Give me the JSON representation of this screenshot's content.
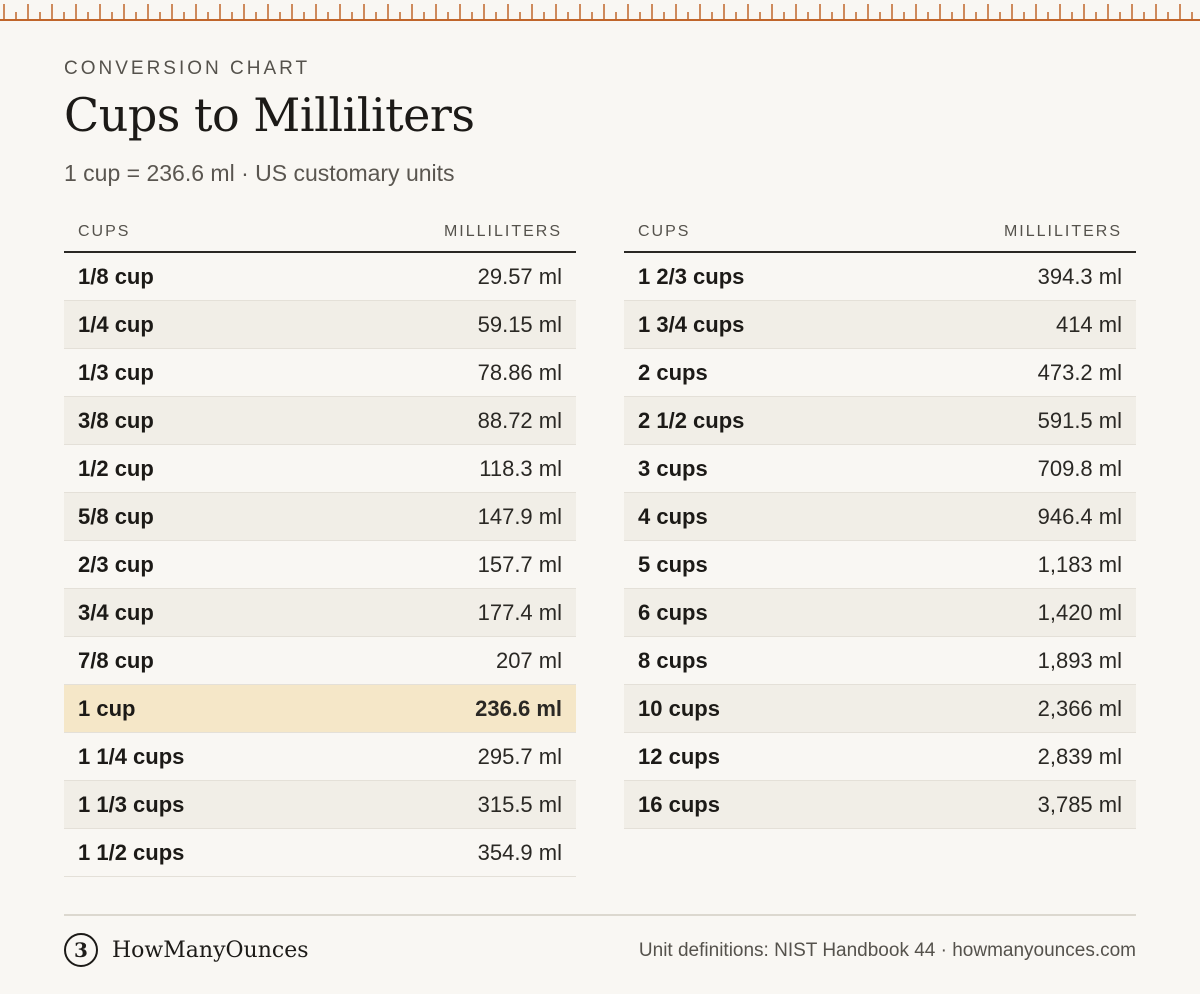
{
  "header": {
    "eyebrow": "CONVERSION CHART",
    "title": "Cups to Milliliters",
    "subtitle": "1 cup = 236.6 ml · US customary units"
  },
  "columns": {
    "cups": "CUPS",
    "ml": "MILLILITERS"
  },
  "left_rows": [
    {
      "cups": "1/8 cup",
      "ml": "29.57 ml"
    },
    {
      "cups": "1/4 cup",
      "ml": "59.15 ml"
    },
    {
      "cups": "1/3 cup",
      "ml": "78.86 ml"
    },
    {
      "cups": "3/8 cup",
      "ml": "88.72 ml"
    },
    {
      "cups": "1/2 cup",
      "ml": "118.3 ml"
    },
    {
      "cups": "5/8 cup",
      "ml": "147.9 ml"
    },
    {
      "cups": "2/3 cup",
      "ml": "157.7 ml"
    },
    {
      "cups": "3/4 cup",
      "ml": "177.4 ml"
    },
    {
      "cups": "7/8 cup",
      "ml": "207 ml"
    },
    {
      "cups": "1 cup",
      "ml": "236.6 ml",
      "highlight": true
    },
    {
      "cups": "1 1/4 cups",
      "ml": "295.7 ml"
    },
    {
      "cups": "1 1/3 cups",
      "ml": "315.5 ml"
    },
    {
      "cups": "1 1/2 cups",
      "ml": "354.9 ml"
    }
  ],
  "right_rows": [
    {
      "cups": "1 2/3 cups",
      "ml": "394.3 ml"
    },
    {
      "cups": "1 3/4 cups",
      "ml": "414 ml"
    },
    {
      "cups": "2 cups",
      "ml": "473.2 ml"
    },
    {
      "cups": "2 1/2 cups",
      "ml": "591.5 ml"
    },
    {
      "cups": "3 cups",
      "ml": "709.8 ml"
    },
    {
      "cups": "4 cups",
      "ml": "946.4 ml"
    },
    {
      "cups": "5 cups",
      "ml": "1,183 ml"
    },
    {
      "cups": "6 cups",
      "ml": "1,420 ml"
    },
    {
      "cups": "8 cups",
      "ml": "1,893 ml"
    },
    {
      "cups": "10 cups",
      "ml": "2,366 ml"
    },
    {
      "cups": "12 cups",
      "ml": "2,839 ml"
    },
    {
      "cups": "16 cups",
      "ml": "3,785 ml"
    }
  ],
  "footer": {
    "logo_mark": "3",
    "logo_text": "HowManyOunces",
    "source": "Unit definitions: NIST Handbook 44 · howmanyounces.com"
  },
  "colors": {
    "background": "#f9f7f3",
    "ruler": "#c0652a",
    "highlight": "#f5e7c8",
    "alt_row": "#f1eee7"
  },
  "icons": {
    "ruler": "ruler-ticks-icon",
    "logo": "logo-icon"
  }
}
